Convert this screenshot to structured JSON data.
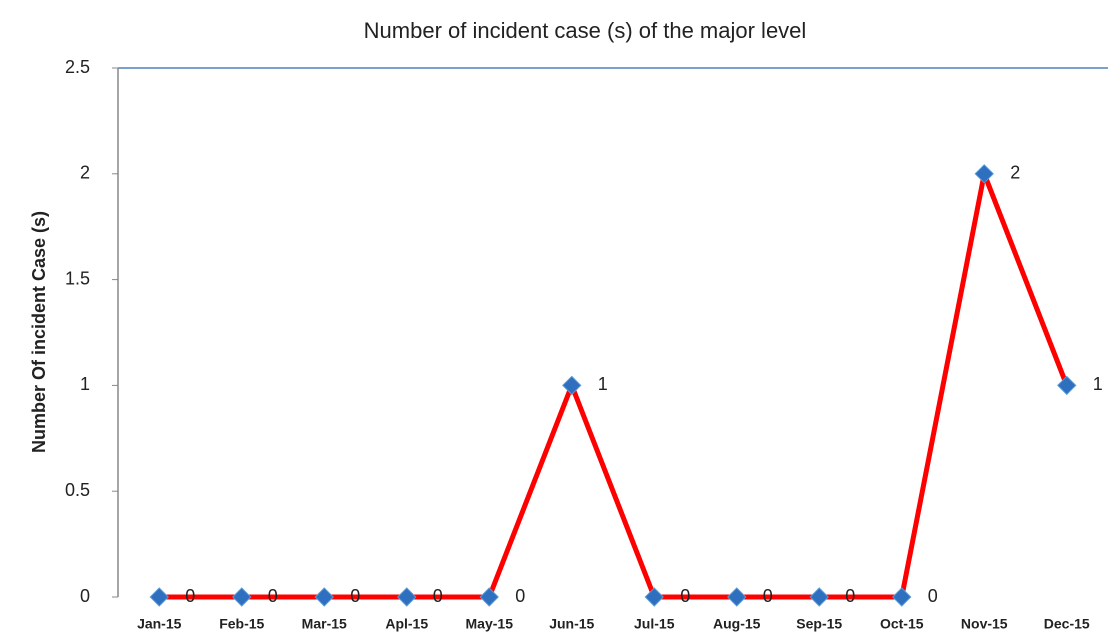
{
  "chart_data": {
    "type": "line",
    "title": "Number of incident case (s) of the major level",
    "y_label": "Number Of incident Case (s)",
    "categories": [
      "Jan-15",
      "Feb-15",
      "Mar-15",
      "Apl-15",
      "May-15",
      "Jun-15",
      "Jul-15",
      "Aug-15",
      "Sep-15",
      "Oct-15",
      "Nov-15",
      "Dec-15"
    ],
    "series": [
      {
        "name": "Major level",
        "color": "#ff0000",
        "marker_color": "#2e6fbf",
        "values": [
          0,
          0,
          0,
          0,
          0,
          1,
          0,
          0,
          0,
          0,
          2,
          1
        ]
      }
    ],
    "ylim": [
      0,
      2.5
    ],
    "yticks": [
      0,
      0.5,
      1,
      1.5,
      2,
      2.5
    ],
    "grid": false
  }
}
